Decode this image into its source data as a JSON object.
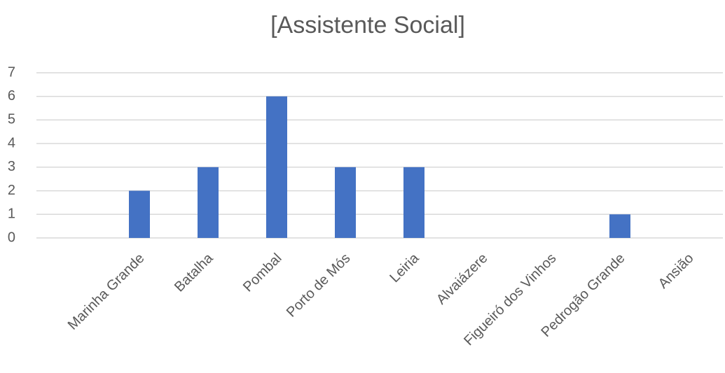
{
  "chart_data": {
    "type": "bar",
    "title": "[Assistente Social]",
    "categories": [
      null,
      "Marinha Grande",
      "Batalha",
      "Pombal",
      "Porto de Mós",
      "Leiria",
      "Alvaiázere",
      "Figueiró dos Vinhos",
      "Pedrogão Grande",
      "Ansião"
    ],
    "values": [
      0,
      2,
      3,
      6,
      3,
      3,
      0,
      0,
      1,
      0
    ],
    "color": "#4472c4",
    "ylim": [
      0,
      7
    ],
    "yticks": [
      0,
      1,
      2,
      3,
      4,
      5,
      6,
      7
    ],
    "grid": true
  }
}
